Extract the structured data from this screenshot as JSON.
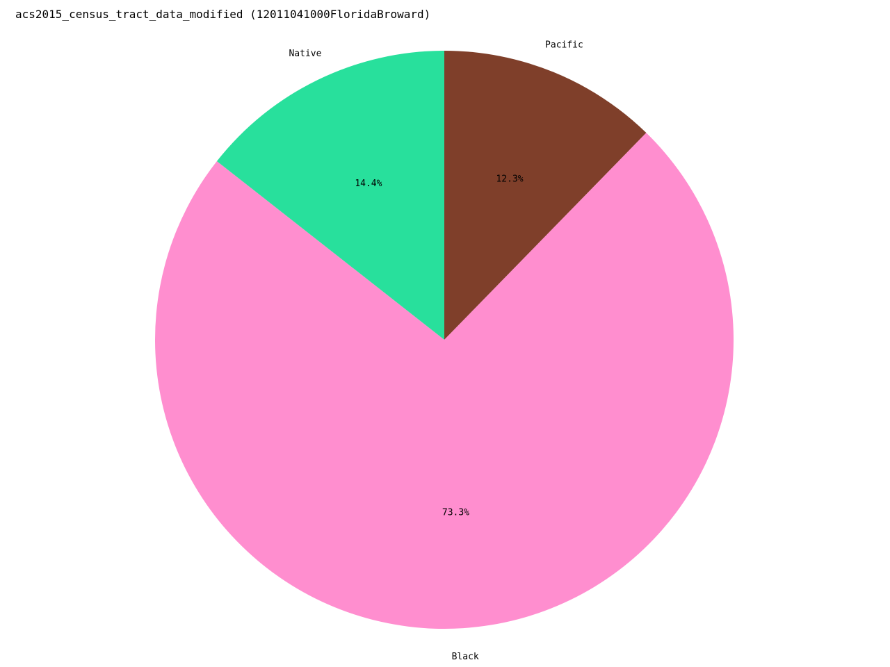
{
  "chart_data": {
    "type": "pie",
    "title": "acs2015_census_tract_data_modified (12011041000FloridaBroward)",
    "slices": [
      {
        "label": "Pacific",
        "value": 12.3,
        "pct_label": "12.3%",
        "color": "#7f3f2a"
      },
      {
        "label": "Black",
        "value": 73.3,
        "pct_label": "73.3%",
        "color": "#ff8ecf"
      },
      {
        "label": "Native",
        "value": 14.4,
        "pct_label": "14.4%",
        "color": "#28e09c"
      }
    ],
    "start": "top",
    "direction": "clockwise"
  }
}
